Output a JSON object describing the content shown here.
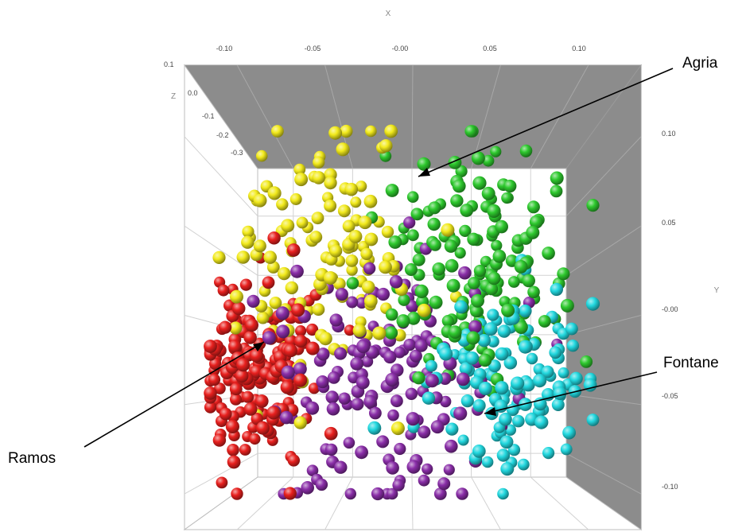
{
  "chart_data": {
    "type": "scatter",
    "subtype": "3d-scatter",
    "title": "",
    "xlabel": "X",
    "ylabel": "Y",
    "zlabel": "Z",
    "xlim": [
      -0.13,
      0.13
    ],
    "ylim": [
      -0.12,
      0.14
    ],
    "x_ticks": [
      "-0.10",
      "-0.05",
      "-0.00",
      "0.05",
      "0.10"
    ],
    "y_ticks": [
      "0.10",
      "0.05",
      "-0.00",
      "-0.05",
      "-0.10"
    ],
    "z_ticks": [
      "0.1",
      "0.0",
      "-0.1",
      "-0.2",
      "-0.3"
    ],
    "grid": true,
    "legend": "none",
    "marker": "sphere",
    "colors": {
      "red": "#e8201e",
      "yellow": "#f2ea1c",
      "purple": "#8a2ea8",
      "green": "#2ec92e",
      "cyan": "#22d8df"
    },
    "series": [
      {
        "color": "red",
        "center": [
          -0.09,
          -0.025
        ],
        "spread": [
          0.018,
          0.03
        ],
        "count": 175
      },
      {
        "color": "yellow",
        "center": [
          -0.045,
          0.045
        ],
        "spread": [
          0.03,
          0.045
        ],
        "count": 130
      },
      {
        "color": "purple",
        "center": [
          -0.01,
          -0.03
        ],
        "spread": [
          0.035,
          0.045
        ],
        "count": 150
      },
      {
        "color": "green",
        "center": [
          0.05,
          0.04
        ],
        "spread": [
          0.03,
          0.04
        ],
        "count": 160
      },
      {
        "color": "cyan",
        "center": [
          0.065,
          -0.04
        ],
        "spread": [
          0.025,
          0.03
        ],
        "count": 125
      }
    ],
    "annotations": [
      {
        "label": "Agria",
        "x": 0.01,
        "y": 0.085
      },
      {
        "label": "Fontane",
        "x": 0.045,
        "y": -0.065
      },
      {
        "label": "Ramos",
        "x": -0.085,
        "y": -0.02
      }
    ]
  }
}
